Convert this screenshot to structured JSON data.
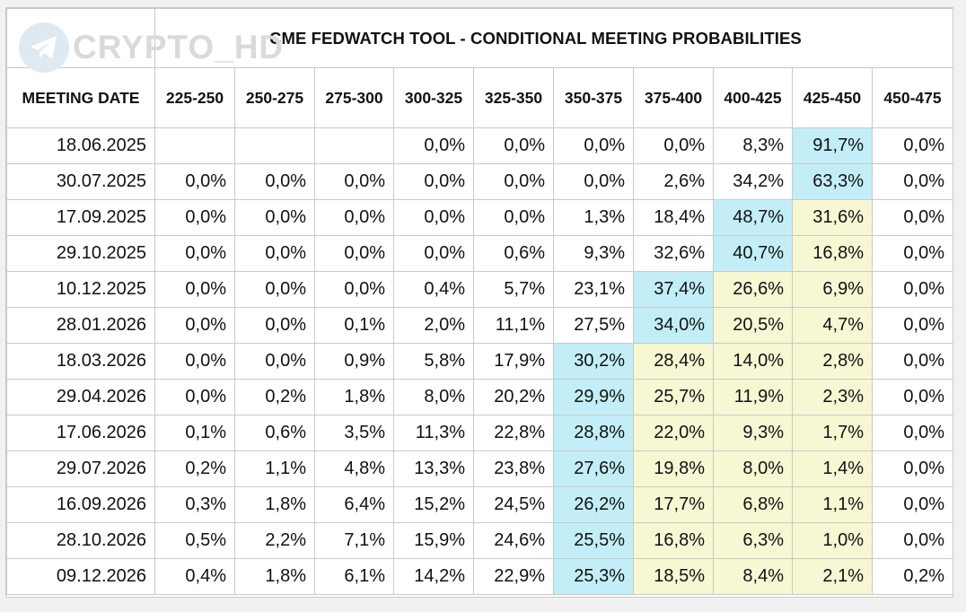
{
  "watermark": {
    "text": "CRYPTO_HD",
    "icon": "telegram-icon"
  },
  "title": "CME FEDWATCH TOOL - CONDITIONAL MEETING PROBABILITIES",
  "headers": [
    "MEETING DATE",
    "225-250",
    "250-275",
    "275-300",
    "300-325",
    "325-350",
    "350-375",
    "375-400",
    "400-425",
    "425-450",
    "450-475"
  ],
  "colors": {
    "blue": "#c3eef8",
    "yellow": "#f7f7d4"
  },
  "rows": [
    {
      "date": "18.06.2025",
      "values": [
        "",
        "",
        "",
        "0,0%",
        "0,0%",
        "0,0%",
        "0,0%",
        "8,3%",
        "91,7%",
        "0,0%"
      ],
      "hl": [
        "",
        "",
        "",
        "",
        "",
        "",
        "",
        "",
        "b",
        ""
      ]
    },
    {
      "date": "30.07.2025",
      "values": [
        "0,0%",
        "0,0%",
        "0,0%",
        "0,0%",
        "0,0%",
        "0,0%",
        "2,6%",
        "34,2%",
        "63,3%",
        "0,0%"
      ],
      "hl": [
        "",
        "",
        "",
        "",
        "",
        "",
        "",
        "",
        "b",
        ""
      ]
    },
    {
      "date": "17.09.2025",
      "values": [
        "0,0%",
        "0,0%",
        "0,0%",
        "0,0%",
        "0,0%",
        "1,3%",
        "18,4%",
        "48,7%",
        "31,6%",
        "0,0%"
      ],
      "hl": [
        "",
        "",
        "",
        "",
        "",
        "",
        "",
        "b",
        "y",
        ""
      ]
    },
    {
      "date": "29.10.2025",
      "values": [
        "0,0%",
        "0,0%",
        "0,0%",
        "0,0%",
        "0,6%",
        "9,3%",
        "32,6%",
        "40,7%",
        "16,8%",
        "0,0%"
      ],
      "hl": [
        "",
        "",
        "",
        "",
        "",
        "",
        "",
        "b",
        "y",
        ""
      ]
    },
    {
      "date": "10.12.2025",
      "values": [
        "0,0%",
        "0,0%",
        "0,0%",
        "0,4%",
        "5,7%",
        "23,1%",
        "37,4%",
        "26,6%",
        "6,9%",
        "0,0%"
      ],
      "hl": [
        "",
        "",
        "",
        "",
        "",
        "",
        "b",
        "y",
        "y",
        ""
      ]
    },
    {
      "date": "28.01.2026",
      "values": [
        "0,0%",
        "0,0%",
        "0,1%",
        "2,0%",
        "11,1%",
        "27,5%",
        "34,0%",
        "20,5%",
        "4,7%",
        "0,0%"
      ],
      "hl": [
        "",
        "",
        "",
        "",
        "",
        "",
        "b",
        "y",
        "y",
        ""
      ]
    },
    {
      "date": "18.03.2026",
      "values": [
        "0,0%",
        "0,0%",
        "0,9%",
        "5,8%",
        "17,9%",
        "30,2%",
        "28,4%",
        "14,0%",
        "2,8%",
        "0,0%"
      ],
      "hl": [
        "",
        "",
        "",
        "",
        "",
        "b",
        "y",
        "y",
        "y",
        ""
      ]
    },
    {
      "date": "29.04.2026",
      "values": [
        "0,0%",
        "0,2%",
        "1,8%",
        "8,0%",
        "20,2%",
        "29,9%",
        "25,7%",
        "11,9%",
        "2,3%",
        "0,0%"
      ],
      "hl": [
        "",
        "",
        "",
        "",
        "",
        "b",
        "y",
        "y",
        "y",
        ""
      ]
    },
    {
      "date": "17.06.2026",
      "values": [
        "0,1%",
        "0,6%",
        "3,5%",
        "11,3%",
        "22,8%",
        "28,8%",
        "22,0%",
        "9,3%",
        "1,7%",
        "0,0%"
      ],
      "hl": [
        "",
        "",
        "",
        "",
        "",
        "b",
        "y",
        "y",
        "y",
        ""
      ]
    },
    {
      "date": "29.07.2026",
      "values": [
        "0,2%",
        "1,1%",
        "4,8%",
        "13,3%",
        "23,8%",
        "27,6%",
        "19,8%",
        "8,0%",
        "1,4%",
        "0,0%"
      ],
      "hl": [
        "",
        "",
        "",
        "",
        "",
        "b",
        "y",
        "y",
        "y",
        ""
      ]
    },
    {
      "date": "16.09.2026",
      "values": [
        "0,3%",
        "1,8%",
        "6,4%",
        "15,2%",
        "24,5%",
        "26,2%",
        "17,7%",
        "6,8%",
        "1,1%",
        "0,0%"
      ],
      "hl": [
        "",
        "",
        "",
        "",
        "",
        "b",
        "y",
        "y",
        "y",
        ""
      ]
    },
    {
      "date": "28.10.2026",
      "values": [
        "0,5%",
        "2,2%",
        "7,1%",
        "15,9%",
        "24,6%",
        "25,5%",
        "16,8%",
        "6,3%",
        "1,0%",
        "0,0%"
      ],
      "hl": [
        "",
        "",
        "",
        "",
        "",
        "b",
        "y",
        "y",
        "y",
        ""
      ]
    },
    {
      "date": "09.12.2026",
      "values": [
        "0,4%",
        "1,8%",
        "6,1%",
        "14,2%",
        "22,9%",
        "25,3%",
        "18,5%",
        "8,4%",
        "2,1%",
        "0,2%"
      ],
      "hl": [
        "",
        "",
        "",
        "",
        "",
        "b",
        "y",
        "y",
        "y",
        ""
      ]
    }
  ]
}
